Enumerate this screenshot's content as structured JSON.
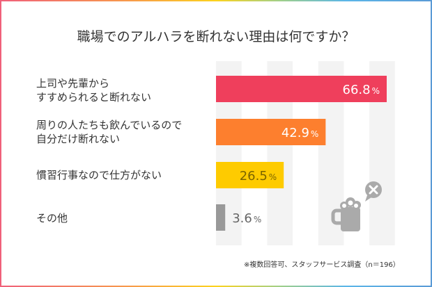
{
  "chart_data": {
    "type": "bar",
    "orientation": "horizontal",
    "title": "職場でのアルハラを断れない理由は何ですか？",
    "categories": [
      "上司や先輩から\nすすめられると断れない",
      "周りの人たちも飲んでいるので\n自分だけ断れない",
      "慣習行事なので仕方がない",
      "その他"
    ],
    "values": [
      66.8,
      42.9,
      26.5,
      3.6
    ],
    "value_labels": [
      "66.8",
      "42.9",
      "26.5",
      "3.6"
    ],
    "unit": "%",
    "colors": [
      "#ef3f5c",
      "#fd7f2e",
      "#fecb00",
      "#999999"
    ],
    "label_colors": [
      "#ffffff",
      "#ffffff",
      "#7a6400",
      "#666666"
    ],
    "xlim": [
      0,
      80
    ],
    "grid": "alternating vertical stripes every 10%",
    "stripe_color": "#f3f3f3",
    "note": "※複数回答可、スタッフサービス調査（n＝196）",
    "icon": "beer-mug-with-x-bubble-icon"
  }
}
